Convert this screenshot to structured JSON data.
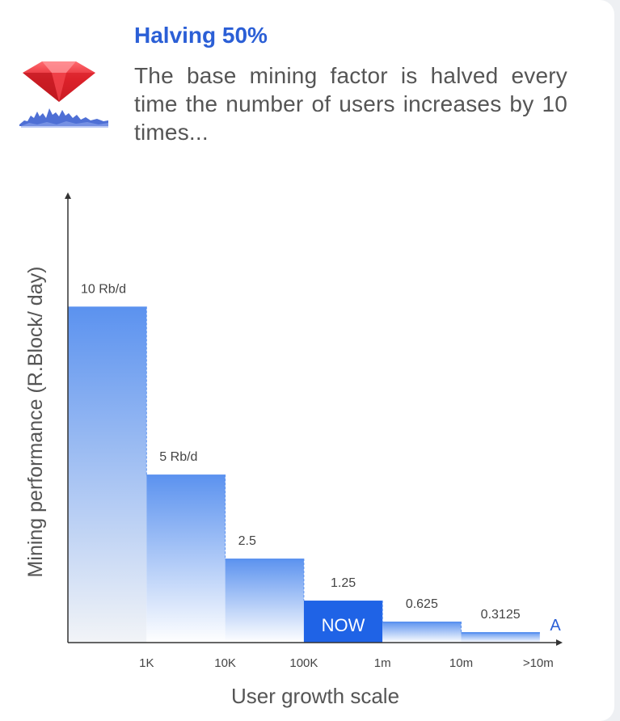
{
  "header": {
    "title": "Halving 50%",
    "description": "The base mining factor is halved every time the number of users increases by 10 times..."
  },
  "logo": {
    "icon": "ruby-gem-icon",
    "gem_color": "#e3262f",
    "wave_color": "#3b5fd0"
  },
  "colors": {
    "bar_top": "#5b92ef",
    "bar_bottom": "#ffffff",
    "now_bar": "#1f63e6",
    "axis": "#333333",
    "label_text": "#444444",
    "marker_text": "#2b5fd6"
  },
  "chart_data": {
    "type": "bar",
    "title": "",
    "xlabel": "User growth scale",
    "ylabel": "Mining performance (R.Block/ day)",
    "ylim": [
      0,
      11.55
    ],
    "categories": [
      "1K",
      "10K",
      "100K",
      "1m",
      "10m",
      ">10m"
    ],
    "values": [
      10,
      5,
      2.5,
      1.25,
      0.625,
      0.3125
    ],
    "data_labels": [
      "10 Rb/d",
      "5 Rb/d",
      "2.5",
      "1.25",
      "0.625",
      "0.3125"
    ],
    "highlighted_index": 3,
    "highlight_label": "NOW",
    "end_marker": "A",
    "grid": false
  }
}
